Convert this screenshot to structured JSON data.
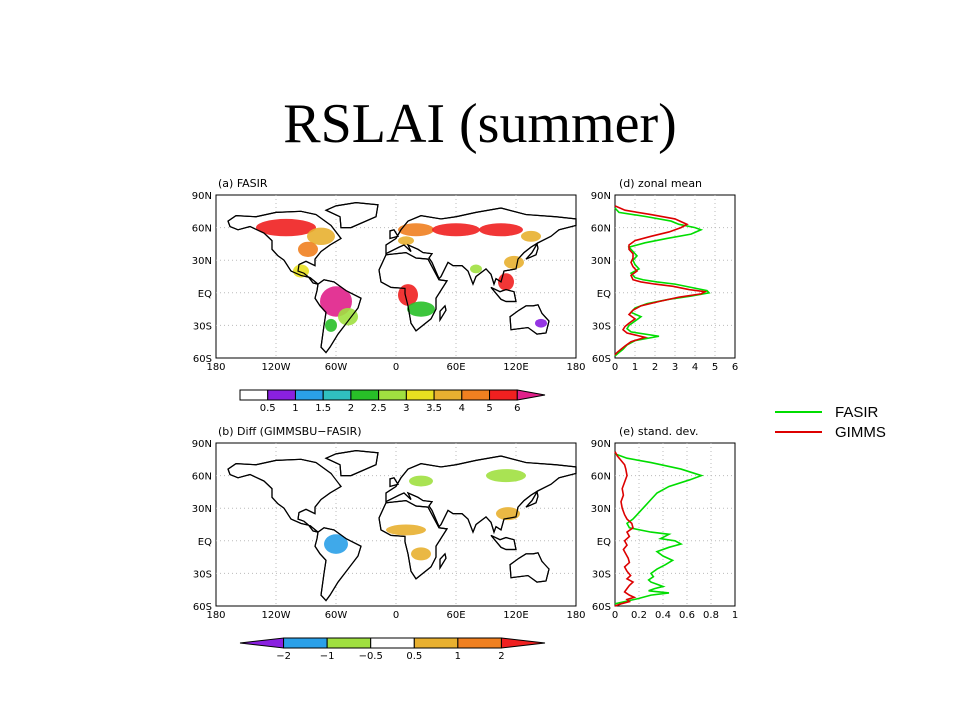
{
  "slide": {
    "title": "RSLAI (summer)"
  },
  "colors": {
    "fasir": "#00dd00",
    "gimms": "#dd0000",
    "land": "#ffffff",
    "coast": "#000000"
  },
  "chart_data": [
    {
      "id": "a",
      "type": "heatmap",
      "panel_title": "(a) FASIR",
      "lon_ticks": [
        "180",
        "120W",
        "60W",
        "0",
        "60E",
        "120E",
        "180"
      ],
      "lat_ticks": [
        "90N",
        "60N",
        "30N",
        "EQ",
        "30S",
        "60S"
      ],
      "colorbar": {
        "labels": [
          "0.5",
          "1",
          "1.5",
          "2",
          "2.5",
          "3",
          "3.5",
          "4",
          "5",
          "6"
        ],
        "colors": [
          "#ffffff",
          "#8a20e0",
          "#2aa0e8",
          "#30c0c0",
          "#28c028",
          "#a0e040",
          "#e8e020",
          "#e8b030",
          "#f08020",
          "#f02020",
          "#e0208a"
        ]
      }
    },
    {
      "id": "b",
      "type": "heatmap",
      "panel_title": "(b) Diff (GIMMSBU−FASIR)",
      "lon_ticks": [
        "180",
        "120W",
        "60W",
        "0",
        "60E",
        "120E",
        "180"
      ],
      "lat_ticks": [
        "90N",
        "60N",
        "30N",
        "EQ",
        "30S",
        "60S"
      ],
      "colorbar": {
        "labels": [
          "−2",
          "−1",
          "−0.5",
          "0.5",
          "1",
          "2"
        ],
        "colors": [
          "#8a20e0",
          "#2aa0e8",
          "#a0e040",
          "#ffffff",
          "#e8b030",
          "#f08020",
          "#f02020"
        ]
      }
    },
    {
      "id": "d",
      "type": "line",
      "panel_title": "(d) zonal mean",
      "x_ticks": [
        "0",
        "1",
        "2",
        "3",
        "4",
        "5",
        "6"
      ],
      "xlim": [
        0,
        6
      ],
      "y_ticks": [
        "90N",
        "60N",
        "30N",
        "EQ",
        "30S",
        "60S"
      ],
      "ylim": [
        -60,
        90
      ],
      "series": [
        {
          "name": "FASIR",
          "x": [
            0,
            0.2,
            1.6,
            2.8,
            3.2,
            4.0,
            4.3,
            3.8,
            2.6,
            1.5,
            0.7,
            0.9,
            1.1,
            0.9,
            1.0,
            1.2,
            0.8,
            1.0,
            1.4,
            2.1,
            3.0,
            3.8,
            4.6,
            4.7,
            3.8,
            2.7,
            1.6,
            1.0,
            0.8,
            1.3,
            1.0,
            0.7,
            0.6,
            0.8,
            2.2,
            1.0,
            0.6,
            0.4,
            0.2,
            0
          ],
          "y": [
            78,
            74,
            70,
            66,
            63,
            60,
            58,
            54,
            50,
            46,
            42,
            38,
            34,
            30,
            26,
            22,
            18,
            14,
            12,
            10,
            8,
            5,
            2,
            0,
            -3,
            -6,
            -10,
            -14,
            -18,
            -22,
            -26,
            -30,
            -33,
            -36,
            -40,
            -44,
            -48,
            -52,
            -55,
            -58
          ]
        },
        {
          "name": "GIMMS",
          "x": [
            0,
            0.5,
            1.8,
            3.0,
            3.6,
            3.3,
            2.7,
            1.8,
            1.0,
            0.7,
            0.7,
            0.9,
            0.9,
            0.8,
            0.9,
            1.1,
            0.8,
            0.9,
            1.3,
            2.0,
            2.9,
            3.7,
            4.5,
            4.3,
            3.2,
            2.2,
            1.3,
            0.9,
            0.7,
            1.0,
            0.7,
            0.5,
            0.4,
            0.6,
            1.5,
            0.8,
            0.5,
            0.3,
            0.1,
            0
          ],
          "y": [
            80,
            76,
            72,
            68,
            63,
            60,
            56,
            52,
            48,
            44,
            40,
            36,
            32,
            28,
            24,
            20,
            16,
            12,
            10,
            8,
            6,
            3,
            1,
            -1,
            -4,
            -8,
            -12,
            -16,
            -20,
            -24,
            -28,
            -31,
            -34,
            -37,
            -41,
            -45,
            -49,
            -52,
            -55,
            -57
          ]
        }
      ]
    },
    {
      "id": "e",
      "type": "line",
      "panel_title": "(e) stand. dev.",
      "x_ticks": [
        "0",
        "0.2",
        "0.4",
        "0.6",
        "0.8",
        "1"
      ],
      "xlim": [
        0,
        1
      ],
      "y_ticks": [
        "90N",
        "60N",
        "30N",
        "EQ",
        "30S",
        "60S"
      ],
      "ylim": [
        -60,
        90
      ],
      "series": [
        {
          "name": "FASIR",
          "x": [
            0.0,
            0.1,
            0.3,
            0.55,
            0.72,
            0.62,
            0.45,
            0.35,
            0.3,
            0.25,
            0.2,
            0.15,
            0.1,
            0.12,
            0.3,
            0.45,
            0.38,
            0.5,
            0.55,
            0.45,
            0.35,
            0.4,
            0.48,
            0.42,
            0.35,
            0.3,
            0.32,
            0.28,
            0.3,
            0.35,
            0.4,
            0.33,
            0.28,
            0.45,
            0.3,
            0.2,
            0.08,
            0
          ],
          "y": [
            80,
            76,
            72,
            66,
            60,
            56,
            50,
            44,
            38,
            32,
            26,
            20,
            16,
            12,
            8,
            6,
            2,
            0,
            -3,
            -6,
            -10,
            -14,
            -18,
            -22,
            -26,
            -30,
            -33,
            -36,
            -38,
            -40,
            -42,
            -44,
            -46,
            -48,
            -50,
            -53,
            -56,
            -58
          ]
        },
        {
          "name": "GIMMS",
          "x": [
            0.0,
            0.02,
            0.05,
            0.08,
            0.09,
            0.1,
            0.08,
            0.06,
            0.07,
            0.05,
            0.06,
            0.08,
            0.1,
            0.14,
            0.15,
            0.1,
            0.12,
            0.08,
            0.1,
            0.07,
            0.09,
            0.11,
            0.12,
            0.08,
            0.1,
            0.13,
            0.1,
            0.15,
            0.12,
            0.1,
            0.08,
            0.12,
            0.16,
            0.1,
            0.12,
            0.05,
            0
          ],
          "y": [
            82,
            78,
            74,
            70,
            66,
            60,
            54,
            48,
            42,
            36,
            30,
            24,
            20,
            16,
            12,
            8,
            4,
            0,
            -4,
            -8,
            -12,
            -16,
            -20,
            -24,
            -28,
            -32,
            -35,
            -38,
            -41,
            -44,
            -47,
            -50,
            -52,
            -54,
            -56,
            -58,
            -60
          ]
        }
      ]
    }
  ],
  "legend": {
    "items": [
      {
        "name": "FASIR"
      },
      {
        "name": "GIMMS"
      }
    ]
  }
}
